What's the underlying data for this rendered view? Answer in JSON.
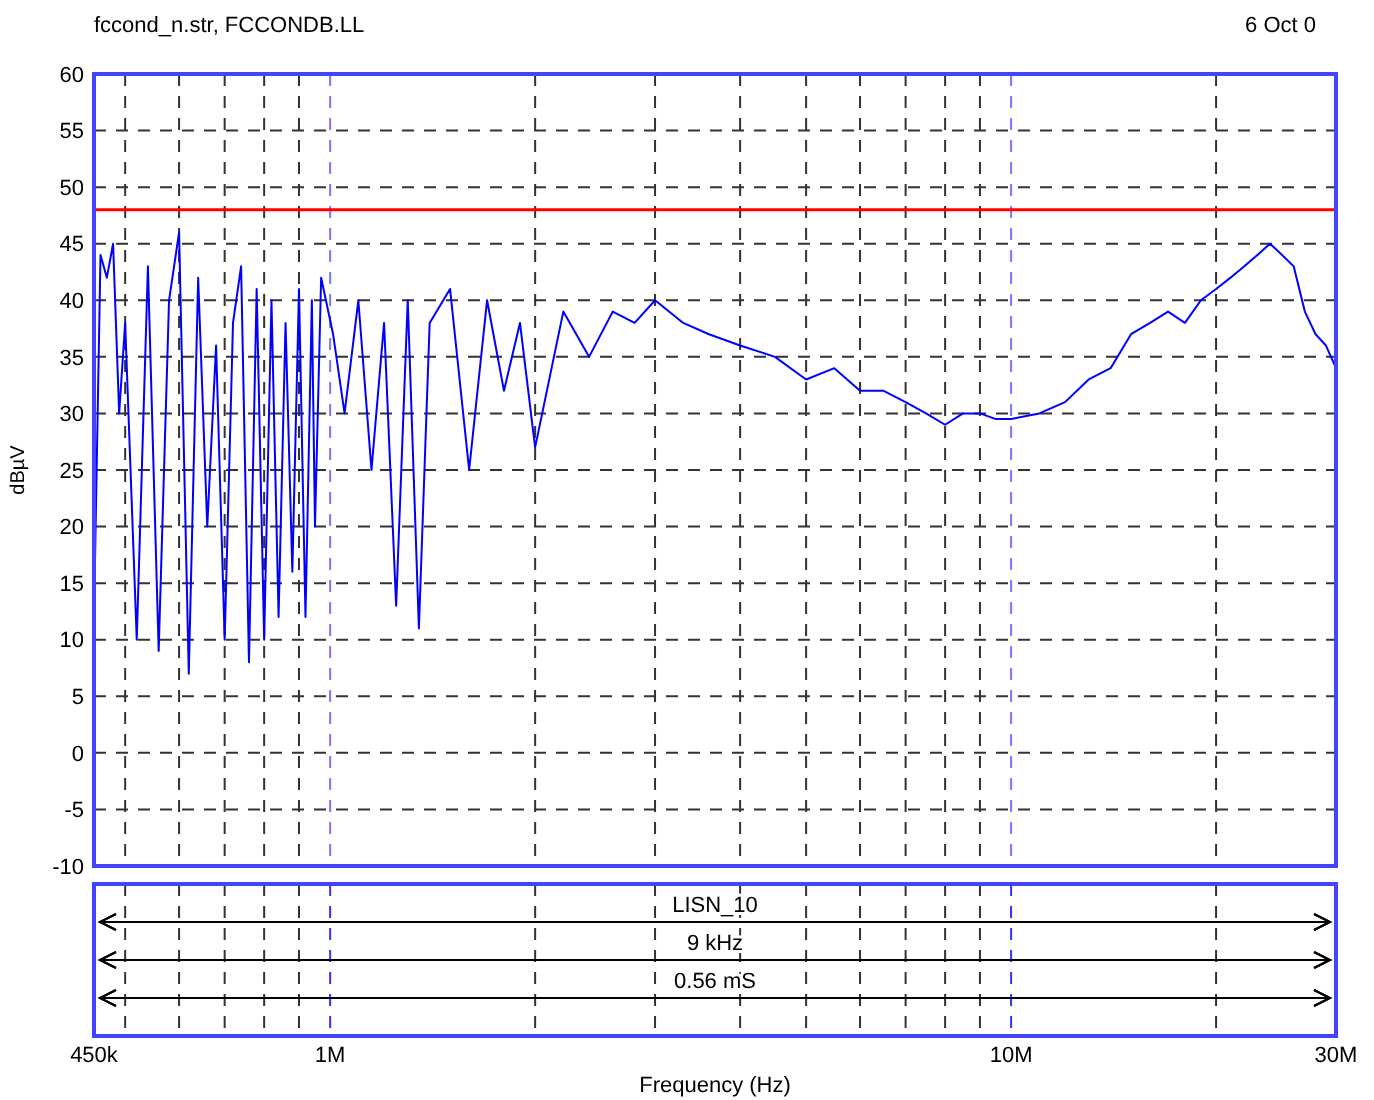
{
  "chart_data": {
    "type": "line",
    "title": "fccond_n.str, FCCONDB.LL",
    "subtitle": "6 Oct 0",
    "xlabel": "Frequency (Hz)",
    "ylabel": "dBµV",
    "log": "x",
    "grid": true,
    "xlim": [
      450000,
      30000000
    ],
    "ylim": [
      -10,
      60
    ],
    "xticks": [
      {
        "value": 450000,
        "label": "450k"
      },
      {
        "value": 500000,
        "label": null
      },
      {
        "value": 600000,
        "label": null
      },
      {
        "value": 700000,
        "label": null
      },
      {
        "value": 800000,
        "label": null
      },
      {
        "value": 900000,
        "label": null
      },
      {
        "value": 1000000,
        "label": "1M"
      },
      {
        "value": 2000000,
        "label": null
      },
      {
        "value": 3000000,
        "label": null
      },
      {
        "value": 4000000,
        "label": null
      },
      {
        "value": 5000000,
        "label": null
      },
      {
        "value": 6000000,
        "label": null
      },
      {
        "value": 7000000,
        "label": null
      },
      {
        "value": 8000000,
        "label": null
      },
      {
        "value": 9000000,
        "label": null
      },
      {
        "value": 10000000,
        "label": "10M"
      },
      {
        "value": 20000000,
        "label": null
      },
      {
        "value": 30000000,
        "label": "30M"
      }
    ],
    "yticks": [
      -10,
      -5,
      0,
      5,
      10,
      15,
      20,
      25,
      30,
      35,
      40,
      45,
      50,
      55,
      60
    ],
    "ref_lines": [
      {
        "axis": "y",
        "value": 48,
        "color": "#ff0000"
      }
    ],
    "annotations": [
      "LISN_10",
      "9 kHz",
      "0.56 mS"
    ],
    "series": [
      {
        "color": "#0000ff",
        "x": [
          450000,
          460000,
          470000,
          480000,
          490000,
          500000,
          520000,
          540000,
          560000,
          580000,
          600000,
          620000,
          640000,
          660000,
          680000,
          700000,
          720000,
          740000,
          760000,
          780000,
          800000,
          820000,
          840000,
          860000,
          880000,
          900000,
          920000,
          940000,
          950000,
          970000,
          1010000,
          1050000,
          1100000,
          1150000,
          1200000,
          1250000,
          1300000,
          1350000,
          1400000,
          1500000,
          1600000,
          1700000,
          1800000,
          1900000,
          2000000,
          2200000,
          2400000,
          2600000,
          2800000,
          3000000,
          3300000,
          3600000,
          4000000,
          4500000,
          5000000,
          5500000,
          6000000,
          6500000,
          7000000,
          7500000,
          8000000,
          8500000,
          9000000,
          9500000,
          10000000,
          11000000,
          12000000,
          13000000,
          14000000,
          15000000,
          16000000,
          17000000,
          18000000,
          19000000,
          20000000,
          21000000,
          22000000,
          23000000,
          24000000,
          25000000,
          26000000,
          27000000,
          28000000,
          29000000,
          30000000
        ],
        "values": [
          12,
          44,
          42,
          45,
          30,
          38,
          10,
          43,
          9,
          40,
          46,
          7,
          42,
          20,
          36,
          10,
          38,
          43,
          8,
          41,
          10,
          40,
          12,
          38,
          16,
          41,
          12,
          40,
          20,
          42,
          37,
          30,
          40,
          25,
          38,
          13,
          40,
          11,
          38,
          41,
          25,
          40,
          32,
          38,
          27,
          39,
          35,
          39,
          38,
          40,
          38,
          37,
          36,
          35,
          33,
          34,
          32,
          32,
          31,
          30,
          29,
          30,
          30,
          29.5,
          29.5,
          30,
          31,
          33,
          34,
          37,
          38,
          39,
          38,
          40,
          41,
          42,
          43,
          44,
          45,
          44,
          43,
          39,
          37,
          36,
          34
        ]
      }
    ]
  }
}
